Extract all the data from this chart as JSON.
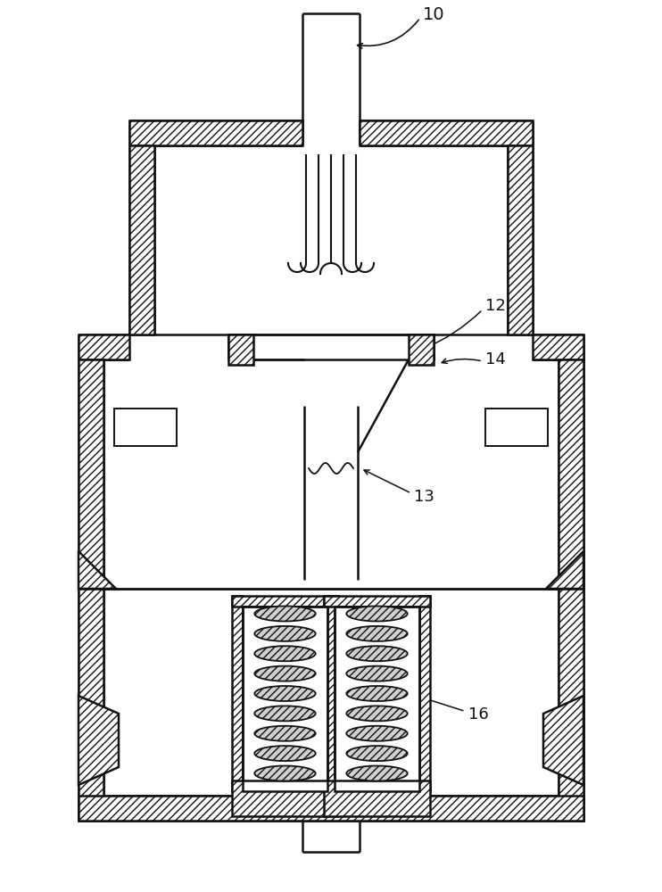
{
  "bg_color": "#ffffff",
  "line_color": "#111111",
  "label_10": "10",
  "label_12": "12",
  "label_13": "13",
  "label_14": "14",
  "label_16": "16",
  "figsize": [
    7.42,
    10.0
  ],
  "dpi": 100
}
